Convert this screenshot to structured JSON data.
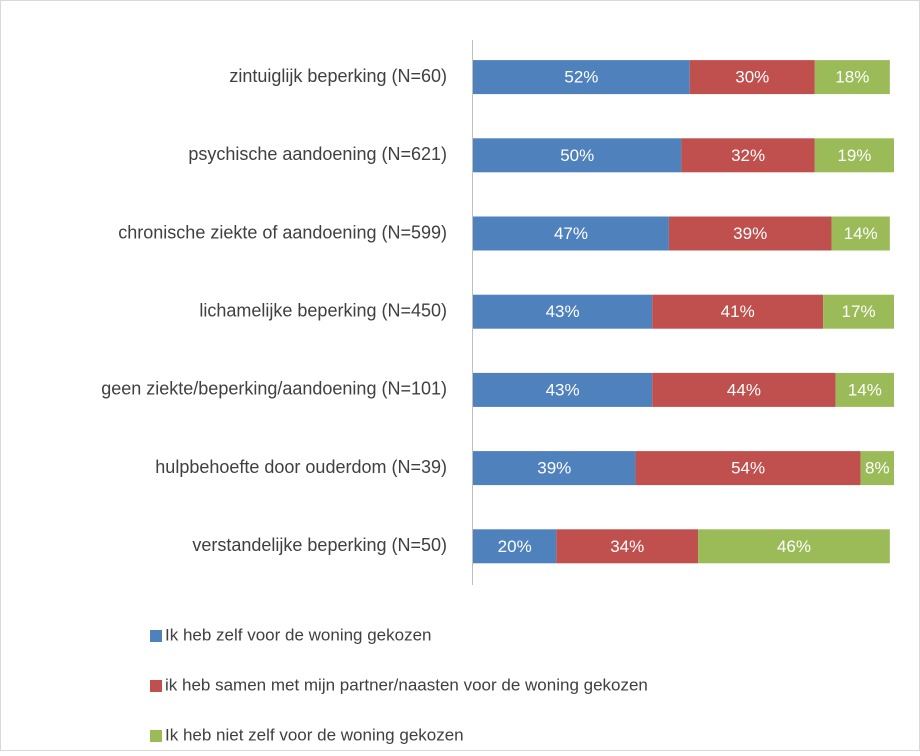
{
  "chart_data": {
    "type": "stacked-bar-horizontal",
    "categories": [
      "zintuiglijk beperking (N=60)",
      "psychische aandoening (N=621)",
      "chronische ziekte of aandoening (N=599)",
      "lichamelijke beperking (N=450)",
      "geen ziekte/beperking/aandoening (N=101)",
      "hulpbehoefte door ouderdom (N=39)",
      "verstandelijke beperking (N=50)"
    ],
    "series": [
      {
        "name": "Ik heb zelf voor de woning gekozen",
        "color": "#4f81bd",
        "values": [
          52,
          50,
          47,
          43,
          43,
          39,
          20
        ],
        "value_labels": [
          "52%",
          "50%",
          "47%",
          "43%",
          "43%",
          "39%",
          "20%"
        ]
      },
      {
        "name": "ik heb samen met mijn partner/naasten voor de woning gekozen",
        "color": "#c0504d",
        "values": [
          30,
          32,
          39,
          41,
          44,
          54,
          34
        ],
        "value_labels": [
          "30%",
          "32%",
          "39%",
          "41%",
          "44%",
          "54%",
          "34%"
        ]
      },
      {
        "name": "Ik heb niet zelf voor de woning gekozen",
        "color": "#9bbb59",
        "values": [
          18,
          19,
          14,
          17,
          14,
          8,
          46
        ],
        "value_labels": [
          "18%",
          "19%",
          "14%",
          "17%",
          "14%",
          "8%",
          "46%"
        ]
      }
    ],
    "legend": "bottom"
  }
}
